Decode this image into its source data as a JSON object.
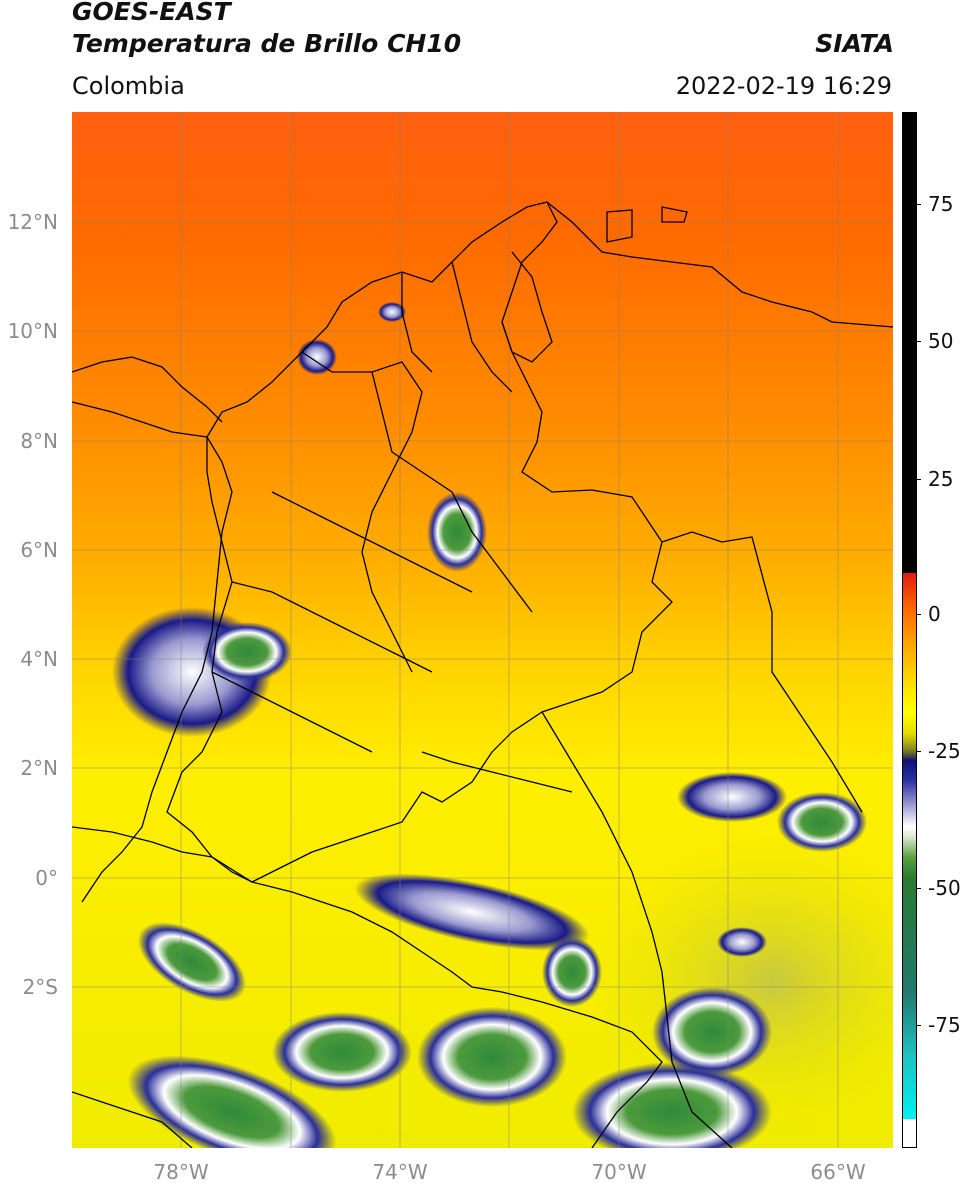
{
  "header": {
    "title_line1": "GOES-EAST",
    "title_line2": "Temperatura de Brillo CH10",
    "brand": "SIATA",
    "region": "Colombia",
    "timestamp": "2022-02-19 16:29"
  },
  "map": {
    "lat_labels": [
      "12°N",
      "10°N",
      "8°N",
      "6°N",
      "4°N",
      "2°N",
      "0°",
      "2°S"
    ],
    "lon_labels": [
      "78°W",
      "74°W",
      "70°W",
      "66°W"
    ]
  },
  "colorbar": {
    "labels": [
      "75",
      "50",
      "25",
      "0",
      "-25",
      "-50",
      "-75"
    ],
    "colors": {
      "warm": "#ff7a00",
      "hot": "#e01b10",
      "mid": "#ffff00",
      "cold_blue": "#10107a",
      "cold_green": "#2a7a30",
      "coldest": "#00f0f0",
      "saturated": "#000000"
    }
  }
}
